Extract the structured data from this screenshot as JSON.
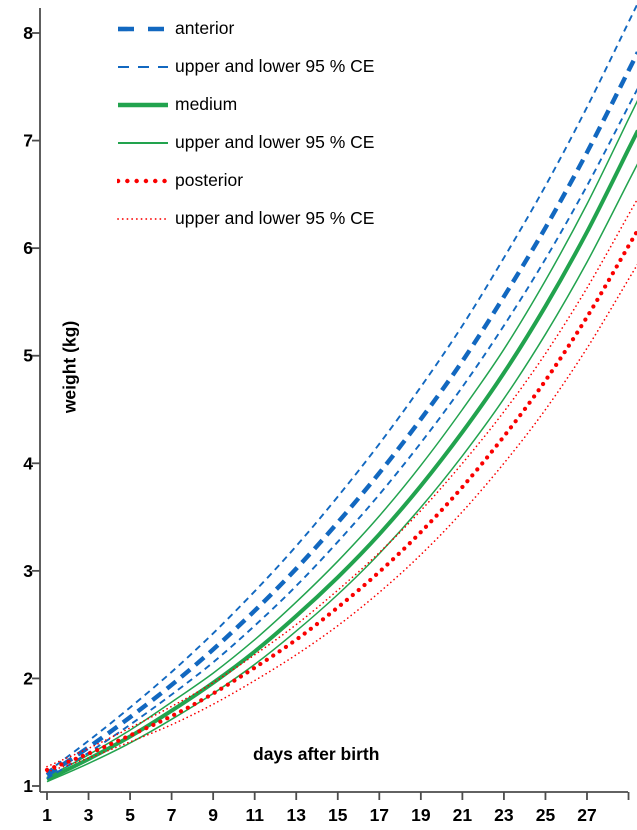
{
  "chart_data": {
    "type": "line",
    "title": "",
    "xlabel": "days after birth",
    "ylabel": "weight (kg)",
    "xlim": [
      0,
      29.45
    ],
    "ylim": [
      1,
      8.23
    ],
    "grid": false,
    "legend_position": "top-left",
    "x_tick_days": [
      1,
      3,
      5,
      7,
      9,
      11,
      13,
      15,
      17,
      19,
      21,
      23,
      25,
      27,
      29
    ],
    "x_tick_labels": [
      "1",
      "3",
      "5",
      "7",
      "9",
      "11",
      "13",
      "15",
      "17",
      "19",
      "21",
      "23",
      "25",
      "27",
      ""
    ],
    "y_tick_values": [
      1,
      2,
      3,
      4,
      5,
      6,
      7,
      8
    ],
    "y_tick_labels": [
      "1",
      "2",
      "3",
      "4",
      "5",
      "6",
      "7",
      "8"
    ],
    "x": [
      1,
      3,
      5,
      7,
      9,
      11,
      13,
      15,
      17,
      19,
      21,
      23,
      25,
      27,
      29
    ],
    "series": [
      {
        "name": "medium upper 95% CE",
        "group": "medium",
        "role": "upper-ci",
        "color": "#22a34e",
        "line": "solid-thin",
        "z": 1,
        "values": [
          1.08,
          1.29,
          1.52,
          1.78,
          2.05,
          2.36,
          2.71,
          3.09,
          3.51,
          3.98,
          4.5,
          5.06,
          5.7,
          6.41,
          7.2
        ]
      },
      {
        "name": "medium lower 95% CE",
        "group": "medium",
        "role": "lower-ci",
        "color": "#22a34e",
        "line": "solid-thin",
        "z": 1,
        "values": [
          1.04,
          1.21,
          1.4,
          1.62,
          1.86,
          2.13,
          2.44,
          2.78,
          3.16,
          3.59,
          4.07,
          4.6,
          5.2,
          5.87,
          6.62
        ]
      },
      {
        "name": "medium",
        "group": "medium",
        "role": "mean",
        "color": "#22a34e",
        "line": "solid-thick",
        "z": 1,
        "values": [
          1.06,
          1.25,
          1.46,
          1.7,
          1.96,
          2.25,
          2.58,
          2.94,
          3.34,
          3.79,
          4.29,
          4.84,
          5.46,
          6.15,
          6.92
        ]
      },
      {
        "name": "anterior upper 95% CE",
        "group": "anterior",
        "role": "upper-ci",
        "color": "#1268c0",
        "line": "dashed-thin",
        "z": 2,
        "values": [
          1.13,
          1.42,
          1.73,
          2.06,
          2.42,
          2.81,
          3.23,
          3.69,
          4.18,
          4.71,
          5.28,
          5.91,
          6.58,
          7.31,
          8.1
        ]
      },
      {
        "name": "anterior lower 95% CE",
        "group": "anterior",
        "role": "lower-ci",
        "color": "#1268c0",
        "line": "dashed-thin",
        "z": 2,
        "values": [
          1.07,
          1.31,
          1.57,
          1.85,
          2.15,
          2.49,
          2.86,
          3.27,
          3.71,
          4.19,
          4.71,
          5.28,
          5.9,
          6.58,
          7.32
        ]
      },
      {
        "name": "anterior",
        "group": "anterior",
        "role": "mean",
        "color": "#1268c0",
        "line": "dashed-thick",
        "z": 2,
        "values": [
          1.1,
          1.36,
          1.64,
          1.94,
          2.27,
          2.63,
          3.02,
          3.45,
          3.91,
          4.41,
          4.95,
          5.55,
          6.19,
          6.89,
          7.65
        ]
      },
      {
        "name": "posterior upper 95% CE",
        "group": "posterior",
        "role": "upper-ci",
        "color": "#fa0000",
        "line": "dotted-thin",
        "z": 3,
        "values": [
          1.18,
          1.35,
          1.54,
          1.74,
          1.96,
          2.22,
          2.5,
          2.82,
          3.17,
          3.56,
          4.0,
          4.48,
          5.02,
          5.63,
          6.31
        ]
      },
      {
        "name": "posterior lower 95% CE",
        "group": "posterior",
        "role": "lower-ci",
        "color": "#fa0000",
        "line": "dotted-thin",
        "z": 3,
        "values": [
          1.13,
          1.26,
          1.41,
          1.57,
          1.76,
          1.98,
          2.22,
          2.49,
          2.8,
          3.15,
          3.55,
          4.0,
          4.5,
          5.07,
          5.71
        ]
      },
      {
        "name": "posterior",
        "group": "posterior",
        "role": "mean",
        "color": "#fa0000",
        "line": "dotted-thick",
        "z": 3,
        "values": [
          1.15,
          1.3,
          1.47,
          1.65,
          1.86,
          2.1,
          2.36,
          2.66,
          2.99,
          3.36,
          3.78,
          4.25,
          4.77,
          5.36,
          6.02
        ]
      }
    ],
    "legend": [
      {
        "label": "anterior",
        "color": "#1268c0",
        "line": "dashed-thick"
      },
      {
        "label": "upper and lower 95 % CE",
        "color": "#1268c0",
        "line": "dashed-thin"
      },
      {
        "label": "medium",
        "color": "#22a34e",
        "line": "solid-thick"
      },
      {
        "label": "upper and lower 95 % CE",
        "color": "#22a34e",
        "line": "solid-thin"
      },
      {
        "label": "posterior",
        "color": "#fa0000",
        "line": "dotted-thick"
      },
      {
        "label": "upper and lower 95 % CE",
        "color": "#fa0000",
        "line": "dotted-thin"
      }
    ]
  },
  "colors": {
    "anterior": "#1268c0",
    "medium": "#22a34e",
    "posterior": "#fa0000",
    "axis": "#4c4c4c",
    "text": "#000000"
  }
}
